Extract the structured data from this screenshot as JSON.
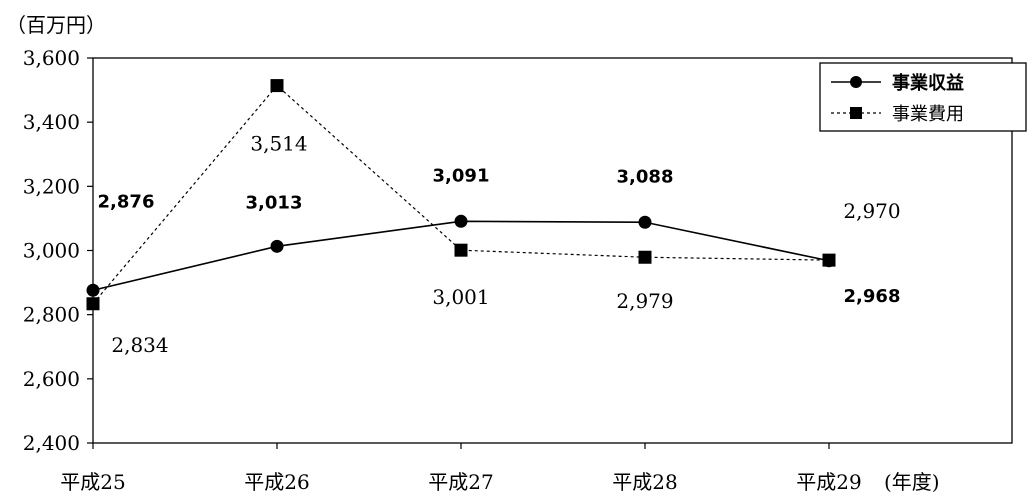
{
  "chart_data": {
    "type": "line",
    "title": "",
    "ylabel": "（百万円）",
    "xlabel": "(年度)",
    "categories": [
      "平成25",
      "平成26",
      "平成27",
      "平成28",
      "平成29"
    ],
    "ylim": [
      2400,
      3600
    ],
    "yticks": [
      2400,
      2600,
      2800,
      3000,
      3200,
      3400,
      3600
    ],
    "ytick_labels": [
      "2,400",
      "2,600",
      "2,800",
      "3,000",
      "3,200",
      "3,400",
      "3,600"
    ],
    "grid": false,
    "legend_position": "top-right",
    "series": [
      {
        "name": "事業収益",
        "marker": "circle",
        "line_style": "solid",
        "color": "#000000",
        "values": [
          2876,
          3013,
          3091,
          3088,
          2968
        ],
        "labels": [
          "2,876",
          "3,013",
          "3,091",
          "3,088",
          "2,968"
        ]
      },
      {
        "name": "事業費用",
        "marker": "square",
        "line_style": "dashed",
        "color": "#000000",
        "values": [
          2834,
          3514,
          3001,
          2979,
          2970
        ],
        "labels": [
          "2,834",
          "3,514",
          "3,001",
          "2,979",
          "2,970"
        ]
      }
    ]
  }
}
